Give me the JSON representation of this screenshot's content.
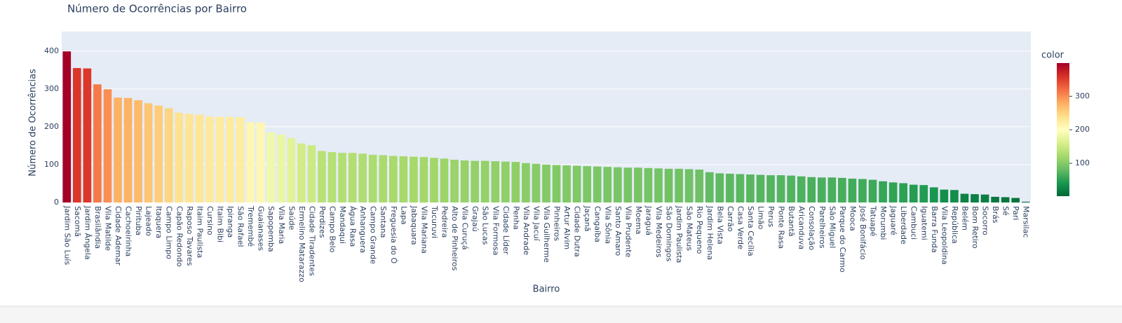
{
  "chart_data": {
    "type": "bar",
    "title": "Número de Ocorrências por Bairro",
    "x_label": "Bairro",
    "y_label": "Número de Ocorrências",
    "categories": [
      "Jardim São Luís",
      "Sacomã",
      "Jardim Ângela",
      "Brasilândia",
      "Vila Matilde",
      "Cidade Ademar",
      "Cachoeirinha",
      "Pirituba",
      "Lajeado",
      "Itaquera",
      "Campo Limpo",
      "Capão Redondo",
      "Raposo Tavares",
      "Itaim Paulista",
      "Cursino",
      "Itaim Bibi",
      "Ipiranga",
      "São Rafael",
      "Tremembé",
      "Guaianases",
      "Sapopemba",
      "Vila Maria",
      "Saúde",
      "Ermelino Matarazzo",
      "Cidade Tiradentes",
      "Perdizes",
      "Campo Belo",
      "Mandaqui",
      "Água Rasa",
      "Anhanguera",
      "Campo Grande",
      "Santana",
      "Freguesia do Ó",
      "Lapa",
      "Jabaquara",
      "Vila Mariana",
      "Tucuruvi",
      "Pedreira",
      "Alto de Pinheiros",
      "Vila Curuçá",
      "Grajaú",
      "São Lucas",
      "Vila Formosa",
      "Cidade Líder",
      "Penha",
      "Vila Andrade",
      "Vila Jacuí",
      "Vila Guilherme",
      "Pinheiros",
      "Artur Alvim",
      "Cidade Dutra",
      "Jaçanã",
      "Cangaíba",
      "Vila Sônia",
      "Santo Amaro",
      "Vila Prudente",
      "Moema",
      "Jaraguá",
      "Vila Medeiros",
      "São Domingos",
      "Jardim Paulista",
      "São Mateus",
      "Rio Pequeno",
      "Jardim Helena",
      "Bela Vista",
      "Carrão",
      "Casa Verde",
      "Santa Cecília",
      "Limão",
      "Perus",
      "Ponte Rasa",
      "Butantã",
      "Aricanduva",
      "Consolação",
      "Parelheiros",
      "São Miguel",
      "Parque do Carmo",
      "Mooca",
      "José Bonifácio",
      "Tatuapé",
      "Morumbi",
      "Jaguaré",
      "Liberdade",
      "Cambuci",
      "Iguatemi",
      "Barra Funda",
      "Vila Leopoldina",
      "República",
      "Belém",
      "Bom Retiro",
      "Socorro",
      "Brás",
      "Sé",
      "Pari",
      "Marsilac"
    ],
    "values": [
      399,
      355,
      354,
      312,
      299,
      277,
      276,
      270,
      262,
      256,
      249,
      237,
      234,
      232,
      227,
      226,
      226,
      225,
      212,
      211,
      185,
      179,
      170,
      156,
      151,
      136,
      133,
      131,
      131,
      129,
      126,
      125,
      123,
      122,
      121,
      120,
      118,
      116,
      113,
      111,
      110,
      110,
      109,
      108,
      107,
      104,
      102,
      100,
      99,
      98,
      97,
      96,
      95,
      94,
      93,
      92,
      92,
      91,
      90,
      89,
      89,
      88,
      87,
      80,
      77,
      76,
      75,
      74,
      73,
      72,
      72,
      71,
      69,
      67,
      66,
      66,
      65,
      63,
      62,
      60,
      56,
      53,
      51,
      47,
      46,
      40,
      34,
      33,
      23,
      22,
      21,
      15,
      14,
      12,
      2
    ],
    "ylim": [
      0,
      420
    ],
    "yticks": [
      0,
      100,
      200,
      300,
      400
    ],
    "grid": true,
    "colorbar_title": "color",
    "colorbar_ticks": [
      100,
      200,
      300
    ],
    "colorscale": [
      "#006837",
      "#1a9850",
      "#66bd63",
      "#a6d96a",
      "#d9ef8b",
      "#ffffbf",
      "#fee08b",
      "#fdae61",
      "#f46d43",
      "#d73027",
      "#a50026"
    ]
  }
}
